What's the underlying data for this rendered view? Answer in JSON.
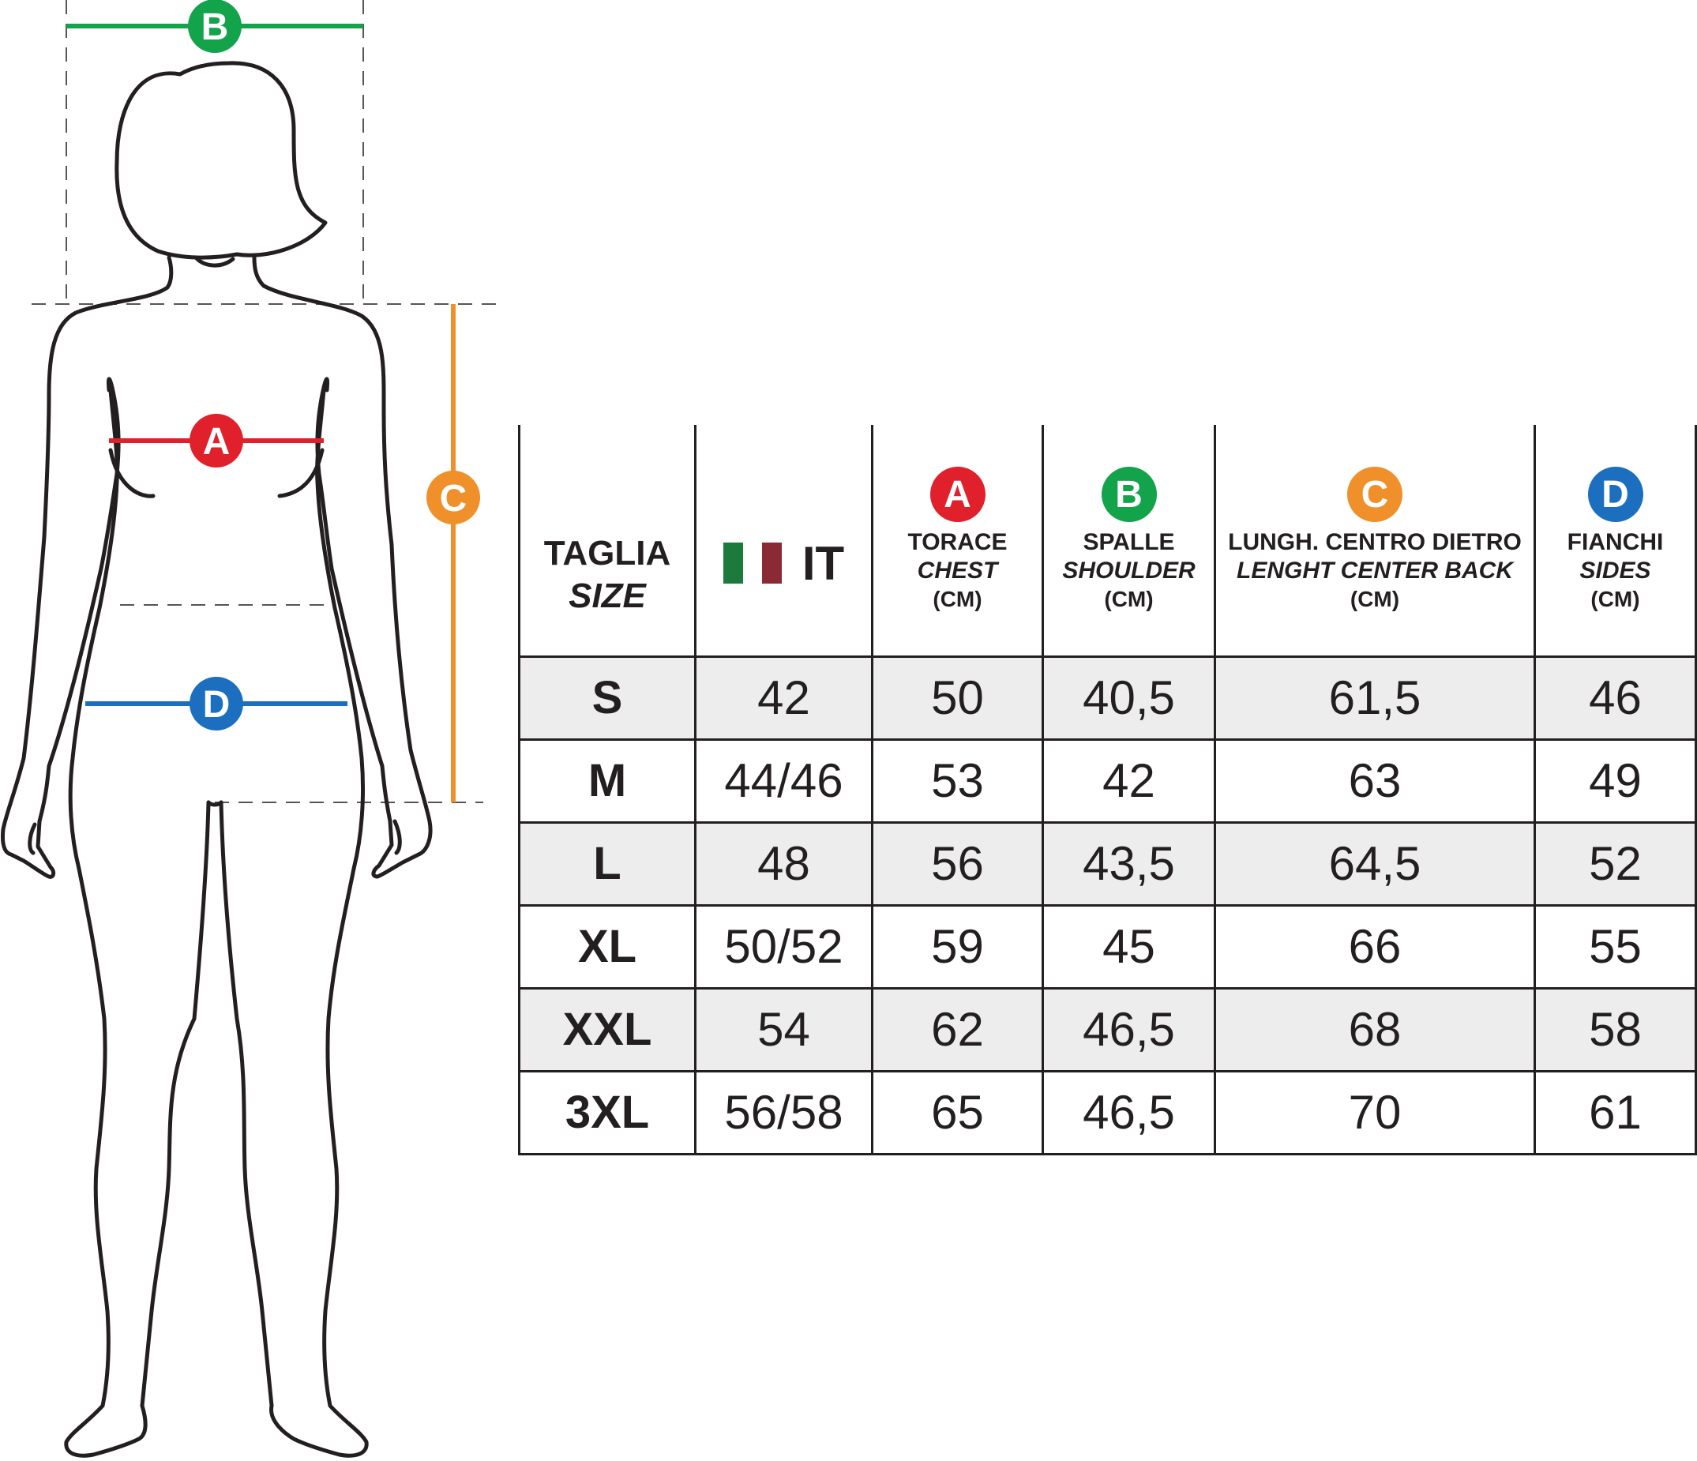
{
  "colors": {
    "A": "#e0202a",
    "B": "#13a34a",
    "C": "#f0902a",
    "D": "#1c6fbf",
    "outline": "#231f20",
    "row_shade": "#ededed",
    "flag_green": "#1c7a3d",
    "flag_white": "#ffffff",
    "flag_red": "#8a2a35"
  },
  "figure": {
    "labels": {
      "A": "A",
      "B": "B",
      "C": "C",
      "D": "D"
    }
  },
  "table": {
    "size_header": {
      "main": "TAGLIA",
      "sub": "SIZE"
    },
    "it_header": {
      "label": "IT",
      "flag_icon": "italy-flag-icon"
    },
    "columns": [
      {
        "badge": "A",
        "main": "TORACE",
        "sub": "CHEST",
        "unit": "(CM)"
      },
      {
        "badge": "B",
        "main": "SPALLE",
        "sub": "SHOULDER",
        "unit": "(CM)"
      },
      {
        "badge": "C",
        "main": "LUNGH. CENTRO DIETRO",
        "sub": "LENGHT CENTER BACK",
        "unit": "(CM)"
      },
      {
        "badge": "D",
        "main": "FIANCHI",
        "sub": "SIDES",
        "unit": "(CM)"
      }
    ],
    "rows": [
      {
        "size": "S",
        "it": "42",
        "chest": "50",
        "shoulder": "40,5",
        "length": "61,5",
        "sides": "46"
      },
      {
        "size": "M",
        "it": "44/46",
        "chest": "53",
        "shoulder": "42",
        "length": "63",
        "sides": "49"
      },
      {
        "size": "L",
        "it": "48",
        "chest": "56",
        "shoulder": "43,5",
        "length": "64,5",
        "sides": "52"
      },
      {
        "size": "XL",
        "it": "50/52",
        "chest": "59",
        "shoulder": "45",
        "length": "66",
        "sides": "55"
      },
      {
        "size": "XXL",
        "it": "54",
        "chest": "62",
        "shoulder": "46,5",
        "length": "68",
        "sides": "58"
      },
      {
        "size": "3XL",
        "it": "56/58",
        "chest": "65",
        "shoulder": "46,5",
        "length": "70",
        "sides": "61"
      }
    ]
  }
}
